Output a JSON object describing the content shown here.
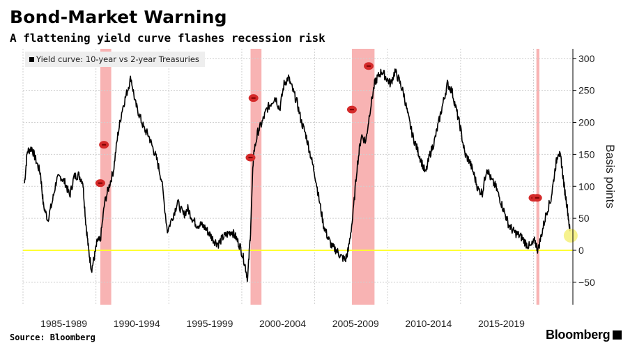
{
  "header": {
    "title": "Bond-Market Warning",
    "subtitle": "A flattening yield curve flashes recession risk"
  },
  "footer": {
    "source": "Source: Bloomberg",
    "brand": "Bloomberg",
    "brand_icon": "bloomberg-terminal-icon"
  },
  "colors": {
    "line": "#000000",
    "recession_band": "#f7a6a6",
    "zero_line": "#ffff33",
    "marker": "#d42a2a",
    "current_dot": "#f4f07a",
    "grid": "#cfcfcf"
  },
  "chart_data": {
    "type": "line",
    "title": "Bond-Market Warning",
    "subtitle": "A flattening yield curve flashes recession risk",
    "legend": "Yield curve: 10-year vs 2-year Treasuries",
    "legend_position": "top-left",
    "ylabel": "Basis points",
    "y_axis_side": "right",
    "ylim": [
      -85,
      315
    ],
    "yticks": [
      -50,
      0,
      50,
      100,
      150,
      200,
      250,
      300
    ],
    "xlim": [
      1984.7,
      2022.4
    ],
    "xtick_labels": [
      {
        "label": "1985-1989",
        "x": 1987.5
      },
      {
        "label": "1990-1994",
        "x": 1992.5
      },
      {
        "label": "1995-1999",
        "x": 1997.5
      },
      {
        "label": "2000-2004",
        "x": 2002.5
      },
      {
        "label": "2005-2009",
        "x": 2007.5
      },
      {
        "label": "2010-2014",
        "x": 2012.5
      },
      {
        "label": "2015-2019",
        "x": 2017.5
      }
    ],
    "vertical_grid_x": [
      1984.7,
      1989.7,
      1994.7,
      1999.7,
      2004.7,
      2009.7,
      2014.7,
      2019.7
    ],
    "reference_line": {
      "y": 0
    },
    "recession_bands": [
      {
        "start": 1990.0,
        "end": 1990.75
      },
      {
        "start": 2000.3,
        "end": 2001.05
      },
      {
        "start": 2007.25,
        "end": 2008.8
      },
      {
        "start": 2019.9,
        "end": 2020.1
      }
    ],
    "markers": [
      {
        "x": 1990.0,
        "y": 105
      },
      {
        "x": 1990.25,
        "y": 165
      },
      {
        "x": 2000.3,
        "y": 145
      },
      {
        "x": 2000.5,
        "y": 238
      },
      {
        "x": 2007.25,
        "y": 220
      },
      {
        "x": 2008.4,
        "y": 288
      },
      {
        "x": 2019.7,
        "y": 82
      },
      {
        "x": 2019.95,
        "y": 82
      }
    ],
    "current_point": {
      "x": 2022.25,
      "y": 23
    },
    "series": [
      {
        "name": "Yield curve: 10-year vs 2-year Treasuries",
        "x": [
          1984.8,
          1985.0,
          1985.3,
          1985.6,
          1985.9,
          1986.1,
          1986.4,
          1986.7,
          1987.0,
          1987.3,
          1987.6,
          1987.9,
          1988.2,
          1988.5,
          1988.8,
          1989.0,
          1989.2,
          1989.4,
          1989.6,
          1989.8,
          1990.0,
          1990.3,
          1990.6,
          1990.9,
          1991.2,
          1991.5,
          1991.8,
          1992.1,
          1992.4,
          1992.7,
          1993.0,
          1993.3,
          1993.6,
          1993.9,
          1994.2,
          1994.6,
          1995.0,
          1995.3,
          1995.7,
          1996.0,
          1996.3,
          1996.6,
          1996.9,
          1997.2,
          1997.5,
          1997.8,
          1998.1,
          1998.4,
          1998.7,
          1999.0,
          1999.3,
          1999.6,
          1999.9,
          2000.1,
          2000.3,
          2000.5,
          2000.8,
          2001.1,
          2001.4,
          2001.7,
          2002.0,
          2002.3,
          2002.6,
          2002.9,
          2003.2,
          2003.5,
          2003.8,
          2004.1,
          2004.4,
          2004.7,
          2005.0,
          2005.3,
          2005.6,
          2005.9,
          2006.2,
          2006.5,
          2006.8,
          2007.0,
          2007.3,
          2007.6,
          2007.9,
          2008.2,
          2008.5,
          2008.8,
          2009.0,
          2009.3,
          2009.6,
          2009.9,
          2010.2,
          2010.5,
          2010.8,
          2011.1,
          2011.4,
          2011.7,
          2012.0,
          2012.3,
          2012.6,
          2012.9,
          2013.2,
          2013.5,
          2013.8,
          2014.1,
          2014.4,
          2014.7,
          2015.0,
          2015.3,
          2015.6,
          2015.9,
          2016.2,
          2016.5,
          2016.8,
          2017.1,
          2017.4,
          2017.7,
          2018.0,
          2018.3,
          2018.6,
          2018.9,
          2019.2,
          2019.5,
          2019.8,
          2020.0,
          2020.3,
          2020.6,
          2020.9,
          2021.2,
          2021.4,
          2021.6,
          2021.8,
          2022.0,
          2022.2
        ],
        "values": [
          105,
          155,
          160,
          140,
          120,
          70,
          48,
          75,
          110,
          115,
          105,
          85,
          115,
          118,
          108,
          45,
          0,
          -30,
          -10,
          15,
          15,
          75,
          100,
          125,
          180,
          220,
          245,
          270,
          230,
          210,
          190,
          180,
          160,
          140,
          110,
          30,
          55,
          75,
          55,
          65,
          50,
          40,
          40,
          35,
          25,
          15,
          10,
          20,
          25,
          30,
          20,
          5,
          -20,
          -45,
          30,
          150,
          185,
          200,
          220,
          230,
          240,
          220,
          260,
          270,
          250,
          230,
          200,
          180,
          150,
          120,
          80,
          40,
          20,
          5,
          0,
          -10,
          -15,
          0,
          50,
          130,
          180,
          170,
          220,
          260,
          270,
          280,
          270,
          260,
          280,
          265,
          245,
          210,
          180,
          160,
          140,
          120,
          150,
          170,
          200,
          230,
          260,
          250,
          220,
          190,
          150,
          140,
          120,
          95,
          90,
          130,
          110,
          100,
          80,
          60,
          40,
          30,
          25,
          20,
          10,
          5,
          15,
          0,
          30,
          60,
          80,
          130,
          155,
          140,
          100,
          70,
          30
        ]
      }
    ]
  }
}
